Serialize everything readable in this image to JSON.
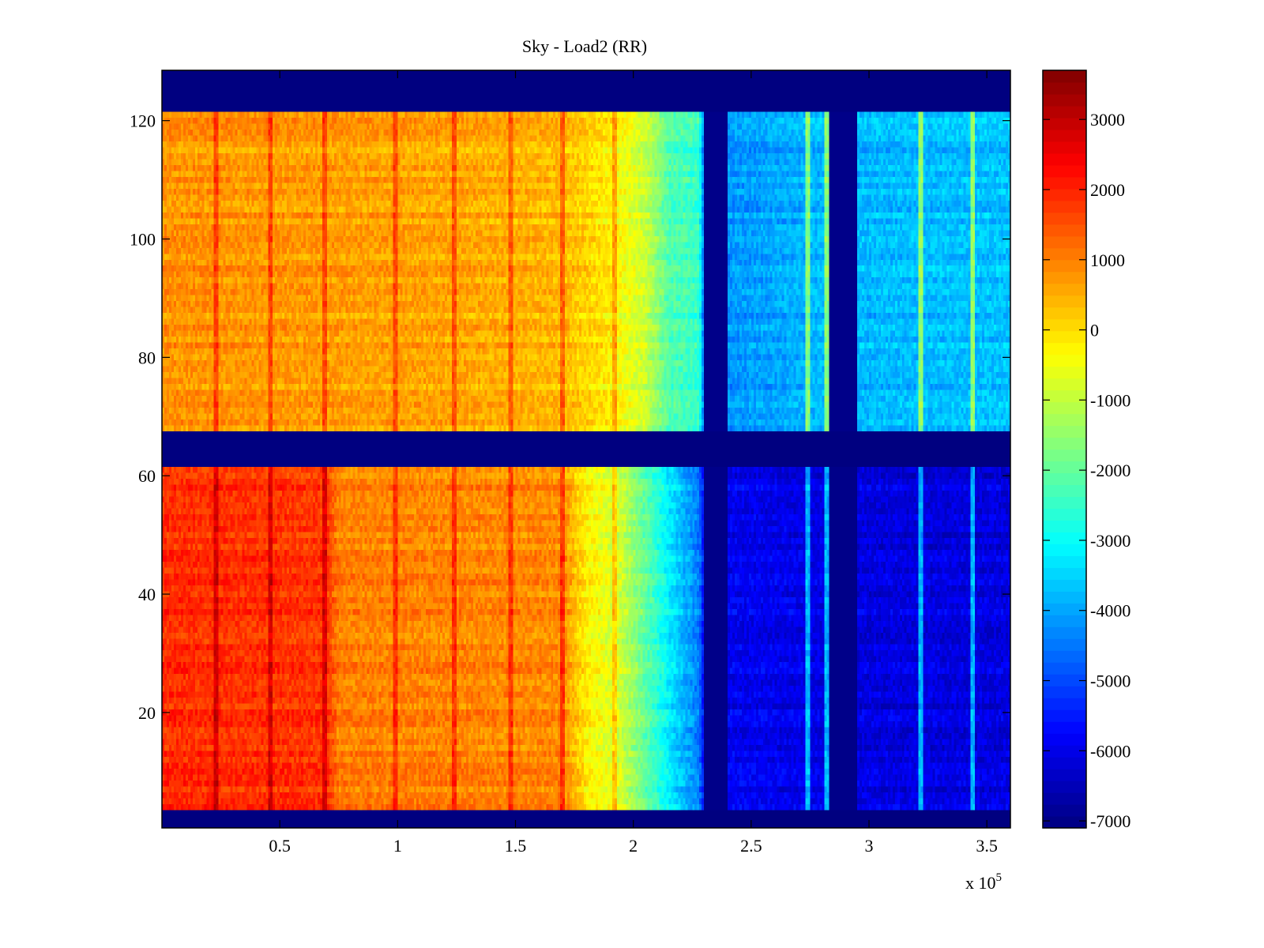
{
  "chart_data": {
    "type": "heatmap",
    "title": "Sky - Load2 (RR)",
    "xlabel": "",
    "ylabel": "",
    "x_multiplier_label": "x 10",
    "x_multiplier_exponent": "5",
    "xlim": [
      0,
      360000
    ],
    "ylim": [
      0.5,
      128.5
    ],
    "xticks": [
      50000,
      100000,
      150000,
      200000,
      250000,
      300000,
      350000
    ],
    "xtick_labels": [
      "0.5",
      "1",
      "1.5",
      "2",
      "2.5",
      "3",
      "3.5"
    ],
    "yticks": [
      20,
      40,
      60,
      80,
      100,
      120
    ],
    "ytick_labels": [
      "20",
      "40",
      "60",
      "80",
      "100",
      "120"
    ],
    "colormap": "jet",
    "clim": [
      -7100,
      3700
    ],
    "colorbar": {
      "ticks": [
        3000,
        2000,
        1000,
        0,
        -1000,
        -2000,
        -3000,
        -4000,
        -5000,
        -6000,
        -7000
      ],
      "tick_labels": [
        "3000",
        "2000",
        "1000",
        "0",
        "-1000",
        "-2000",
        "-3000",
        "-4000",
        "-5000",
        "-6000",
        "-7000"
      ]
    },
    "blank_rows": [
      [
        1,
        3
      ],
      [
        62,
        67
      ],
      [
        122,
        128
      ]
    ],
    "bands": [
      {
        "name": "upper",
        "rows": [
          68,
          121
        ],
        "profile_x": [
          0,
          60000,
          120000,
          170000,
          190000,
          205000,
          215000,
          228000,
          232000,
          240000,
          280000,
          300000,
          360000
        ],
        "profile_value": [
          800,
          700,
          600,
          400,
          -200,
          -900,
          -2200,
          -2500,
          -6800,
          -4200,
          -3800,
          -3800,
          -3700
        ]
      },
      {
        "name": "lower",
        "rows": [
          4,
          61
        ],
        "profile_x": [
          0,
          70000,
          75000,
          170000,
          180000,
          195000,
          205000,
          215000,
          228000,
          232000,
          240000,
          300000,
          360000
        ],
        "profile_value": [
          1900,
          1800,
          1000,
          900,
          -200,
          -900,
          -2000,
          -3200,
          -4500,
          -6900,
          -5900,
          -6100,
          -6100
        ]
      }
    ],
    "blank_columns": [
      {
        "x_range": [
          230000,
          240000
        ],
        "rows": [
          1,
          128
        ]
      },
      {
        "x_range": [
          283000,
          295000
        ],
        "rows": [
          1,
          128
        ]
      }
    ],
    "dark_stripes_x": [
      23000,
      46000,
      69000,
      99000,
      124000,
      148000,
      170000,
      192000
    ],
    "bright_stripes_x": [
      274000,
      282000,
      322000,
      344000
    ]
  }
}
